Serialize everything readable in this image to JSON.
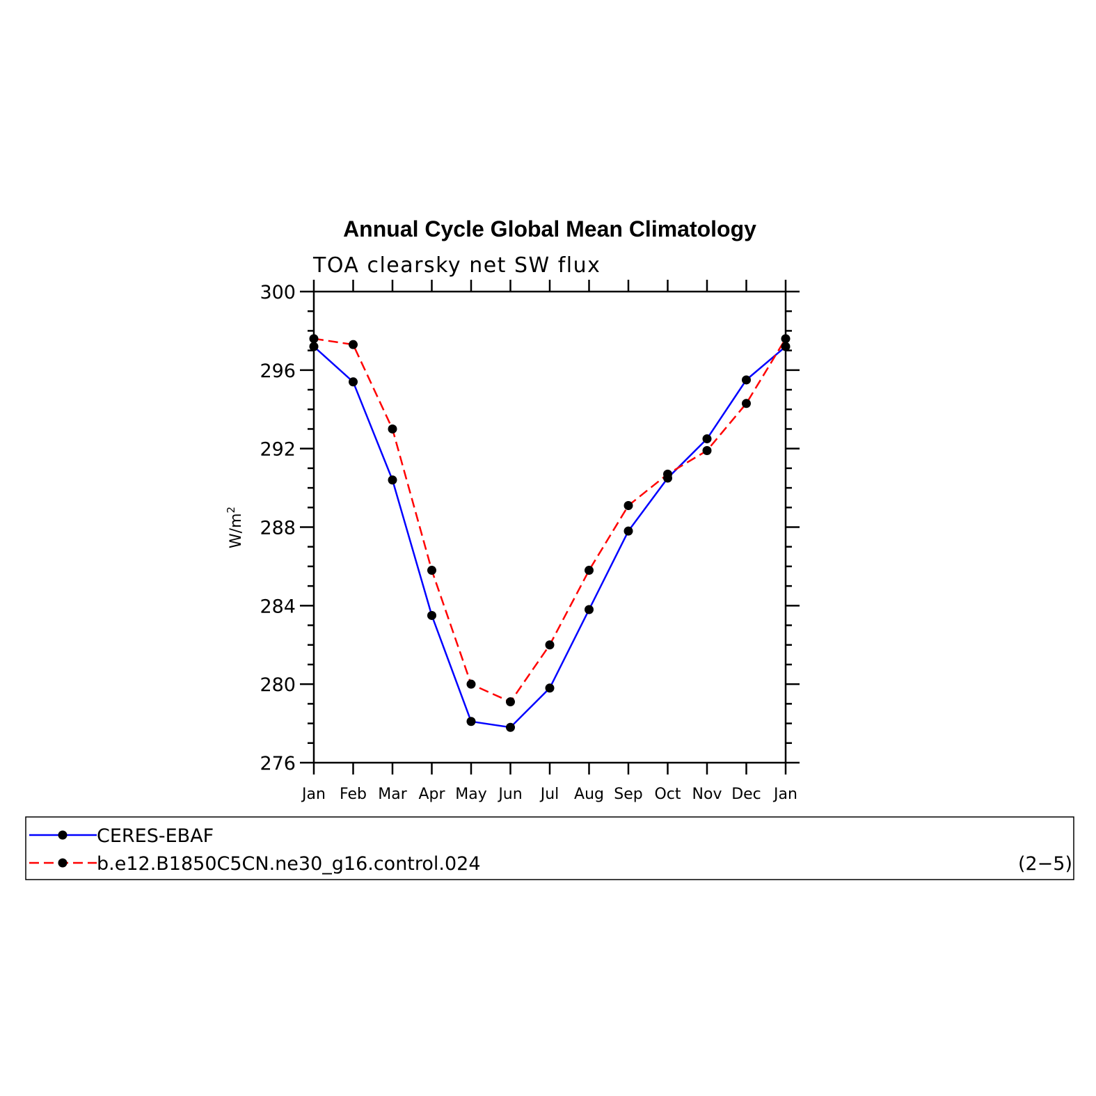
{
  "chart_data": {
    "type": "line",
    "title": "Annual Cycle Global Mean Climatology",
    "subtitle": "TOA clearsky net SW flux",
    "ylabel": "W/m",
    "ylabel_sup": "2",
    "categories": [
      "Jan",
      "Feb",
      "Mar",
      "Apr",
      "May",
      "Jun",
      "Jul",
      "Aug",
      "Sep",
      "Oct",
      "Nov",
      "Dec",
      "Jan"
    ],
    "ylim": [
      276,
      300
    ],
    "yticks": [
      276,
      280,
      284,
      288,
      292,
      296,
      300
    ],
    "yticks_labels": [
      "276",
      "280",
      "284",
      "288",
      "292",
      "296",
      "300"
    ],
    "ymajor_step": 4,
    "yminor_step": 1,
    "series": [
      {
        "name": "CERES-EBAF",
        "color": "#0000ff",
        "dash": "solid",
        "marker": "filled-circle",
        "values": [
          297.2,
          295.4,
          290.4,
          283.5,
          278.1,
          277.8,
          279.8,
          283.8,
          287.8,
          290.5,
          292.5,
          295.5,
          297.2
        ]
      },
      {
        "name": "b.e12.B1850C5CN.ne30_g16.control.024",
        "color": "#ff0000",
        "dash": "dashed",
        "marker": "filled-circle",
        "values": [
          297.6,
          297.3,
          293.0,
          285.8,
          280.0,
          279.1,
          282.0,
          285.8,
          289.1,
          290.7,
          291.9,
          294.3,
          297.6
        ]
      }
    ],
    "legend_placement": "bottom",
    "page_label": "(2−5)"
  }
}
